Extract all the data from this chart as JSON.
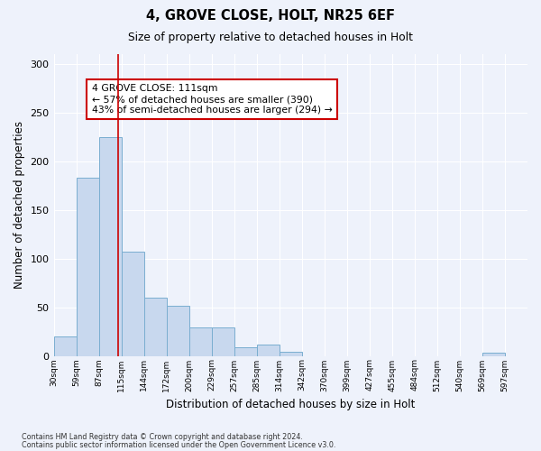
{
  "title1": "4, GROVE CLOSE, HOLT, NR25 6EF",
  "title2": "Size of property relative to detached houses in Holt",
  "xlabel": "Distribution of detached houses by size in Holt",
  "ylabel": "Number of detached properties",
  "bin_labels": [
    "30sqm",
    "59sqm",
    "87sqm",
    "115sqm",
    "144sqm",
    "172sqm",
    "200sqm",
    "229sqm",
    "257sqm",
    "285sqm",
    "314sqm",
    "342sqm",
    "370sqm",
    "399sqm",
    "427sqm",
    "455sqm",
    "484sqm",
    "512sqm",
    "540sqm",
    "569sqm",
    "597sqm"
  ],
  "bar_heights": [
    20,
    183,
    225,
    107,
    60,
    51,
    29,
    29,
    9,
    12,
    4,
    0,
    0,
    0,
    0,
    0,
    0,
    0,
    0,
    3,
    0
  ],
  "bar_color": "#c8d8ee",
  "bar_edge_color": "#7aaed0",
  "vline_index": 2.85,
  "vline_color": "#cc0000",
  "annotation_text": "4 GROVE CLOSE: 111sqm\n← 57% of detached houses are smaller (390)\n43% of semi-detached houses are larger (294) →",
  "annotation_box_color": "#ffffff",
  "annotation_box_edge": "#cc0000",
  "ylim": [
    0,
    310
  ],
  "yticks": [
    0,
    50,
    100,
    150,
    200,
    250,
    300
  ],
  "background_color": "#eef2fb",
  "grid_color": "#ffffff",
  "footer1": "Contains HM Land Registry data © Crown copyright and database right 2024.",
  "footer2": "Contains public sector information licensed under the Open Government Licence v3.0."
}
